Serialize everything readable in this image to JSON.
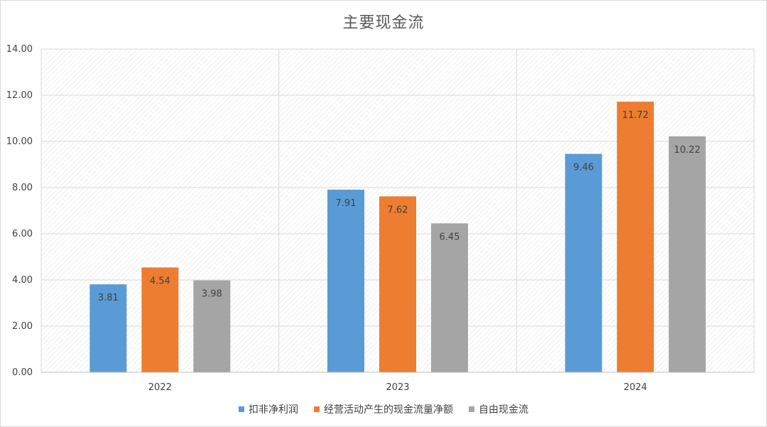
{
  "chart_data": {
    "type": "bar",
    "title": "主要现金流",
    "categories": [
      "2022",
      "2023",
      "2024"
    ],
    "series": [
      {
        "name": "扣非净利润",
        "color": "#5b9bd5",
        "values": [
          3.81,
          7.91,
          9.46
        ]
      },
      {
        "name": "经营活动产生的现金流量净额",
        "color": "#ed7d31",
        "values": [
          4.54,
          7.62,
          11.72
        ]
      },
      {
        "name": "自由现金流",
        "color": "#a5a5a5",
        "values": [
          3.98,
          6.45,
          10.22
        ]
      }
    ],
    "ylim": [
      0,
      14
    ],
    "yticks": [
      "0.00",
      "2.00",
      "4.00",
      "6.00",
      "8.00",
      "10.00",
      "12.00",
      "14.00"
    ],
    "grid": true,
    "legend_position": "bottom",
    "xlabel": "",
    "ylabel": ""
  }
}
